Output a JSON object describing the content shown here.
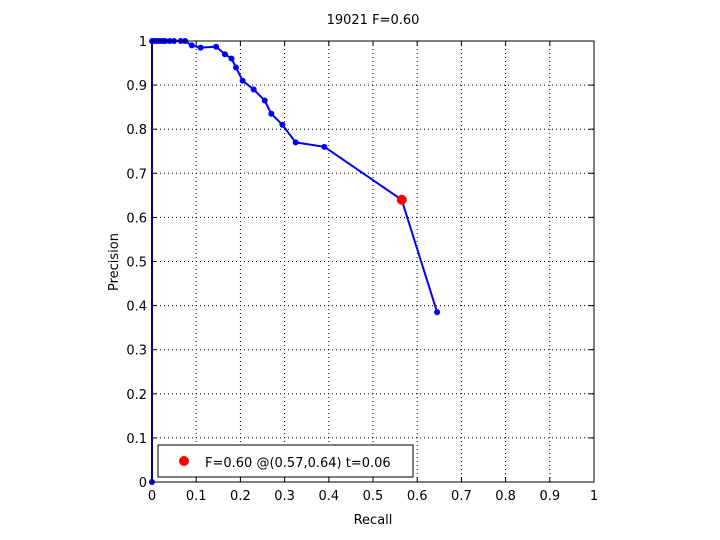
{
  "chart_data": {
    "type": "line",
    "title": "19021 F=0.60",
    "xlabel": "Recall",
    "ylabel": "Precision",
    "xlim": [
      0,
      1
    ],
    "ylim": [
      0,
      1
    ],
    "grid": true,
    "xticks": [
      "0",
      "0.1",
      "0.2",
      "0.3",
      "0.4",
      "0.5",
      "0.6",
      "0.7",
      "0.8",
      "0.9",
      "1"
    ],
    "yticks": [
      "0",
      "0.1",
      "0.2",
      "0.3",
      "0.4",
      "0.5",
      "0.6",
      "0.7",
      "0.8",
      "0.9",
      "1"
    ],
    "series": [
      {
        "color": "#0000ff",
        "points": [
          [
            0.0,
            0.0
          ],
          [
            0.0,
            1.0
          ],
          [
            0.005,
            1.0
          ],
          [
            0.01,
            1.0
          ],
          [
            0.015,
            1.0
          ],
          [
            0.02,
            1.0
          ],
          [
            0.025,
            1.0
          ],
          [
            0.03,
            1.0
          ],
          [
            0.04,
            1.0
          ],
          [
            0.05,
            1.0
          ],
          [
            0.065,
            1.0
          ],
          [
            0.075,
            1.0
          ],
          [
            0.09,
            0.99
          ],
          [
            0.11,
            0.985
          ],
          [
            0.145,
            0.987
          ],
          [
            0.165,
            0.97
          ],
          [
            0.18,
            0.96
          ],
          [
            0.19,
            0.94
          ],
          [
            0.205,
            0.91
          ],
          [
            0.23,
            0.89
          ],
          [
            0.255,
            0.865
          ],
          [
            0.27,
            0.835
          ],
          [
            0.295,
            0.81
          ],
          [
            0.325,
            0.77
          ],
          [
            0.39,
            0.76
          ],
          [
            0.565,
            0.64
          ],
          [
            0.645,
            0.385
          ]
        ]
      }
    ],
    "highlight": {
      "x": 0.565,
      "y": 0.64,
      "color": "#ff0000"
    },
    "legend": {
      "text": "F=0.60 @(0.57,0.64) t=0.06",
      "position": "bottom-left"
    }
  }
}
